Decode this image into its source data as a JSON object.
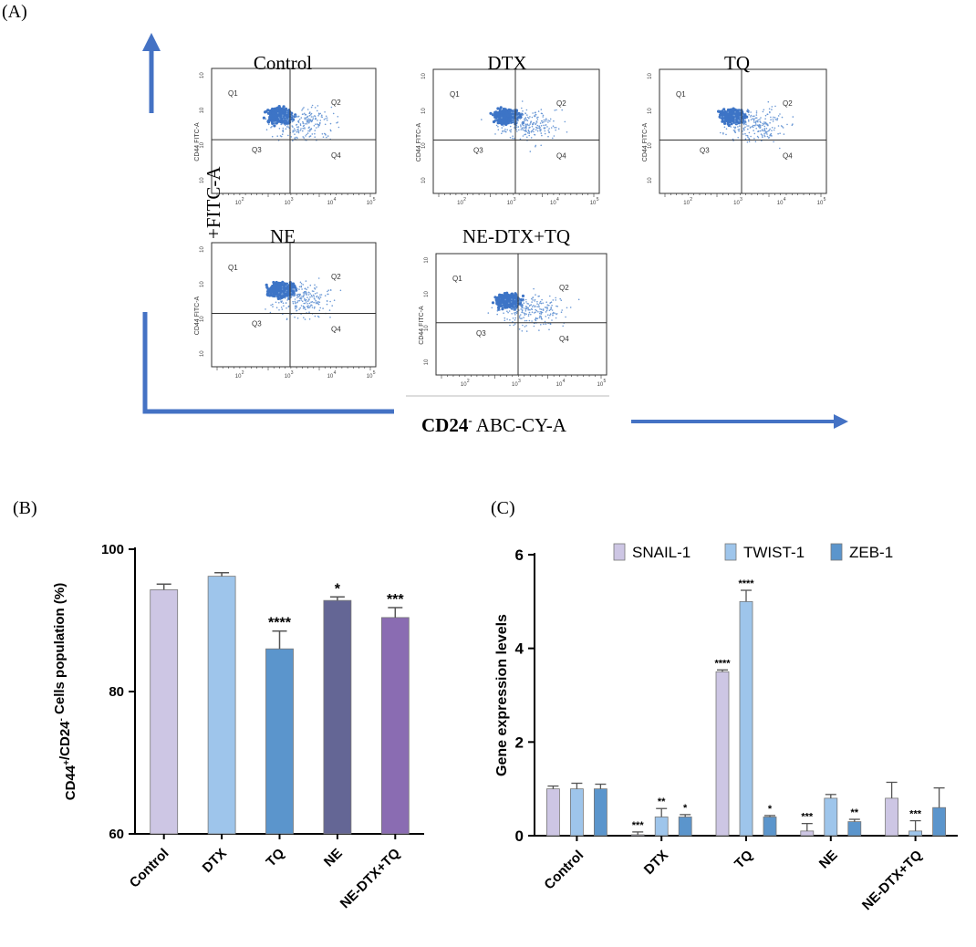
{
  "panels": {
    "a": "(A)",
    "b": "(B)",
    "c": "(C)"
  },
  "flow": {
    "x_axis_bold": "CD24",
    "x_axis_sup": "-",
    "x_axis_rest": " ABC-CY-A",
    "y_axis_label": "+FITC-A",
    "plot_ylabel": "CD44 FITC-A",
    "quadrants": [
      "Q1",
      "Q2",
      "Q3",
      "Q4"
    ],
    "ticks": [
      "10",
      "2",
      "10",
      "3",
      "10",
      "4",
      "10",
      "5"
    ],
    "plots": [
      {
        "title": "Control"
      },
      {
        "title": "DTX"
      },
      {
        "title": "TQ"
      },
      {
        "title": "NE"
      },
      {
        "title": "NE-DTX+TQ"
      }
    ],
    "arrow_color": "#4472c4"
  },
  "chart_data": [
    {
      "type": "bar",
      "title": "",
      "xlabel": "",
      "ylabel": "CD44+/CD24- Cells population (%)",
      "ylabel_parts": [
        "CD44",
        "+",
        "/CD24",
        "-",
        " Cells population (%)"
      ],
      "ylim": [
        60,
        100
      ],
      "yticks": [
        "60",
        "80",
        "100"
      ],
      "categories": [
        "Control",
        "DTX",
        "TQ",
        "NE",
        "NE-DTX+TQ"
      ],
      "values": [
        94.3,
        96.2,
        86.0,
        92.8,
        90.4
      ],
      "errors": [
        0.8,
        0.5,
        2.5,
        0.5,
        1.4
      ],
      "significance": [
        "",
        "",
        "****",
        "*",
        "***"
      ],
      "colors": [
        "#cdc6e4",
        "#9ec5eb",
        "#5b95cc",
        "#646695",
        "#8a6cb2"
      ]
    },
    {
      "type": "bar",
      "title": "",
      "xlabel": "",
      "ylabel": "Gene expression levels",
      "ylim": [
        0,
        6
      ],
      "yticks": [
        "0",
        "2",
        "4",
        "6"
      ],
      "categories": [
        "Control",
        "DTX",
        "TQ",
        "NE",
        "NE-DTX+TQ"
      ],
      "series": [
        {
          "name": "SNAIL-1",
          "values": [
            1.0,
            0.02,
            3.5,
            0.1,
            0.8
          ],
          "errors": [
            0.06,
            0.06,
            0.04,
            0.16,
            0.34
          ],
          "significance": [
            "",
            "***",
            "****",
            "***",
            ""
          ],
          "color": "#cdc6e4"
        },
        {
          "name": "TWIST-1",
          "values": [
            1.0,
            0.4,
            5.0,
            0.8,
            0.1
          ],
          "errors": [
            0.12,
            0.18,
            0.24,
            0.08,
            0.22
          ],
          "significance": [
            "",
            "**",
            "****",
            "",
            "***"
          ],
          "color": "#9ec5eb"
        },
        {
          "name": "ZEB-1",
          "values": [
            1.0,
            0.4,
            0.4,
            0.3,
            0.6
          ],
          "errors": [
            0.1,
            0.05,
            0.03,
            0.05,
            0.42
          ],
          "significance": [
            "",
            "*",
            "*",
            "**",
            ""
          ],
          "color": "#5b95cc"
        }
      ],
      "legend": "top"
    }
  ]
}
